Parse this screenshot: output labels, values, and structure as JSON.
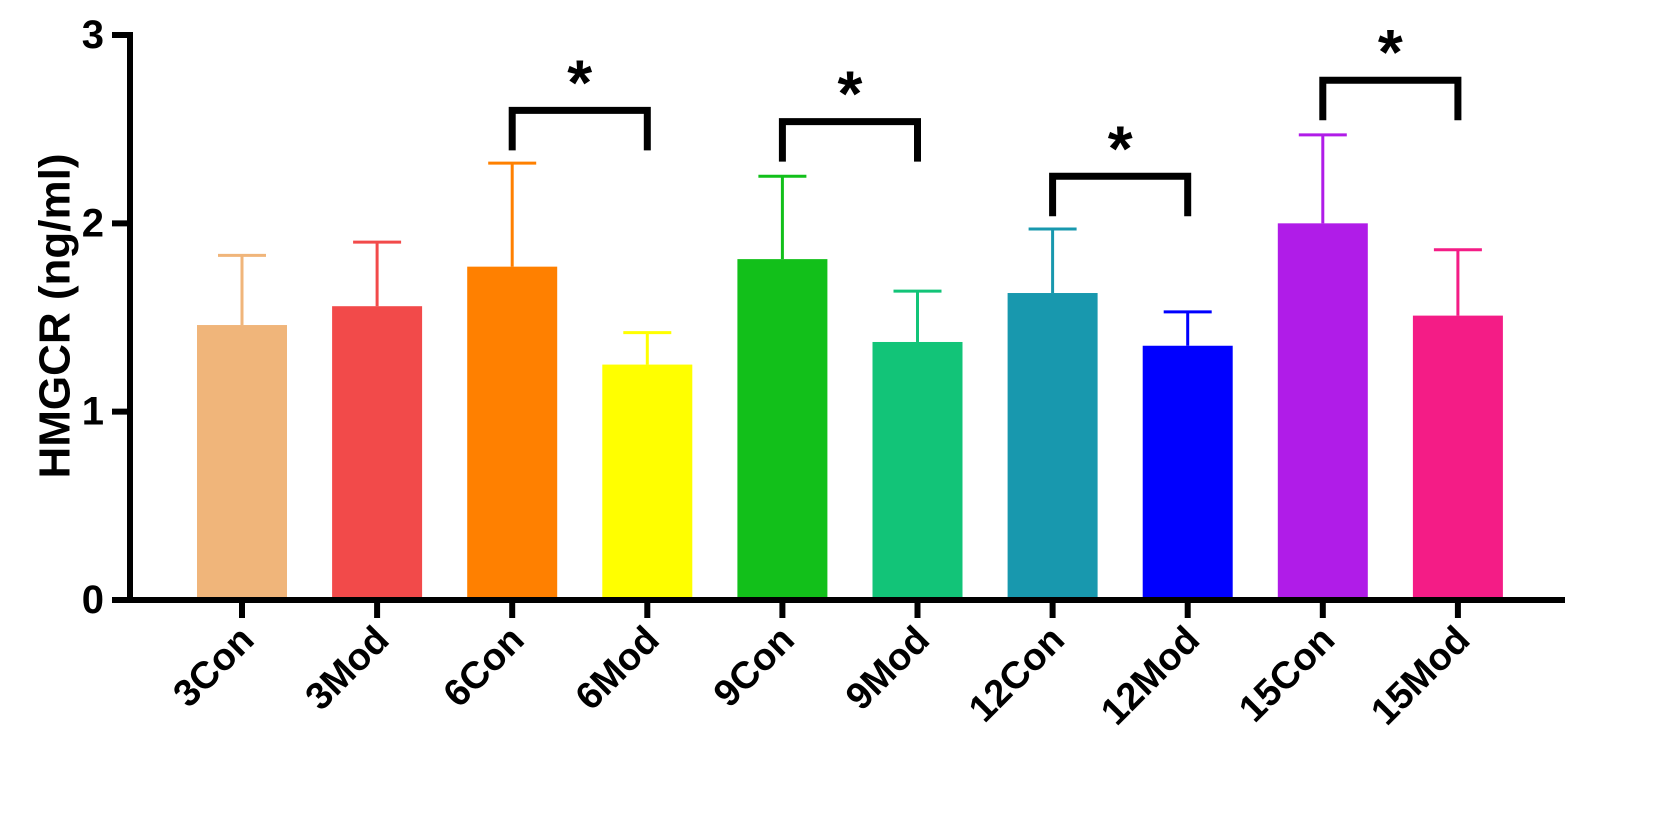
{
  "chart_data": {
    "type": "bar",
    "title": "",
    "xlabel": "",
    "ylabel": "HMGCR (ng/ml)",
    "ylim": [
      0,
      3
    ],
    "yticks": [
      0,
      1,
      2,
      3
    ],
    "grid": false,
    "categories": [
      "3Con",
      "3Mod",
      "6Con",
      "6Mod",
      "9Con",
      "9Mod",
      "12Con",
      "12Mod",
      "15Con",
      "15Mod"
    ],
    "values": [
      1.46,
      1.56,
      1.77,
      1.25,
      1.81,
      1.37,
      1.63,
      1.35,
      2.0,
      1.51
    ],
    "error": [
      0.37,
      0.34,
      0.55,
      0.17,
      0.44,
      0.27,
      0.34,
      0.18,
      0.47,
      0.35
    ],
    "colors": [
      "#F0B57A",
      "#F24A4A",
      "#FF8000",
      "#FFFF00",
      "#12C01A",
      "#12C478",
      "#1898AE",
      "#0000FF",
      "#B01CE8",
      "#F41C86"
    ],
    "significance": [
      {
        "from": "6Con",
        "to": "6Mod",
        "label": "*",
        "y": 2.6
      },
      {
        "from": "9Con",
        "to": "9Mod",
        "label": "*",
        "y": 2.54
      },
      {
        "from": "12Con",
        "to": "12Mod",
        "label": "*",
        "y": 2.25
      },
      {
        "from": "15Con",
        "to": "15Mod",
        "label": "*",
        "y": 2.76
      }
    ]
  }
}
